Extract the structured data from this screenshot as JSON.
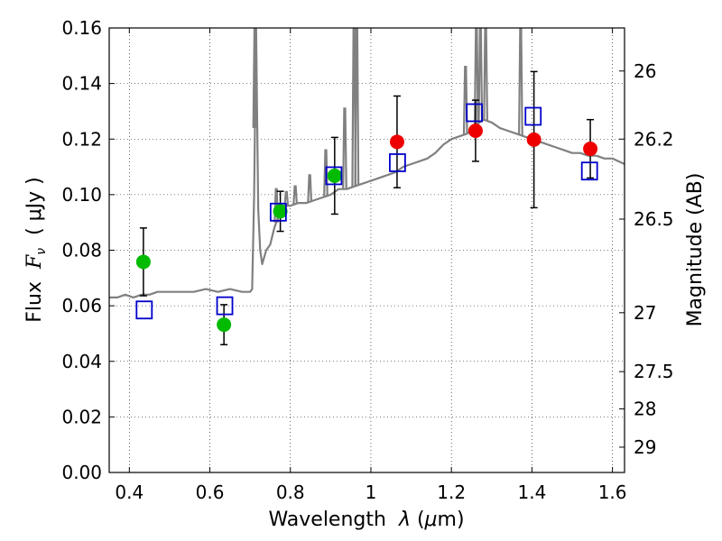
{
  "chart_data": {
    "type": "scatter",
    "xlabel_prefix": "Wavelength  ",
    "xlabel_symbol": "λ",
    "xlabel_unit_open": " (",
    "xlabel_unit_mu": "μ",
    "xlabel_unit_close": "m)",
    "ylabel_prefix": "Flux  ",
    "ylabel_symbol": "F",
    "ylabel_subscript": "ν",
    "ylabel_unit": "  ( μJy )",
    "y2label": "Magnitude (AB)",
    "xlim": [
      0.35,
      1.63
    ],
    "ylim": [
      0,
      0.16
    ],
    "xticks": [
      {
        "value": 0.4,
        "label": "0.4"
      },
      {
        "value": 0.6,
        "label": "0.6"
      },
      {
        "value": 0.8,
        "label": "0.8"
      },
      {
        "value": 1.0,
        "label": "1"
      },
      {
        "value": 1.2,
        "label": "1.2"
      },
      {
        "value": 1.4,
        "label": "1.4"
      },
      {
        "value": 1.6,
        "label": "1.6"
      }
    ],
    "yticks": [
      {
        "value": 0.0,
        "label": "0.00"
      },
      {
        "value": 0.02,
        "label": "0.02"
      },
      {
        "value": 0.04,
        "label": "0.04"
      },
      {
        "value": 0.06,
        "label": "0.06"
      },
      {
        "value": 0.08,
        "label": "0.08"
      },
      {
        "value": 0.1,
        "label": "0.10"
      },
      {
        "value": 0.12,
        "label": "0.12"
      },
      {
        "value": 0.14,
        "label": "0.14"
      },
      {
        "value": 0.16,
        "label": "0.16"
      }
    ],
    "y2ticks": [
      {
        "flux": 0.1445,
        "label": "26"
      },
      {
        "flux": 0.12,
        "label": "26.2"
      },
      {
        "flux": 0.0912,
        "label": "26.5"
      },
      {
        "flux": 0.0575,
        "label": "27"
      },
      {
        "flux": 0.0363,
        "label": "27.5"
      },
      {
        "flux": 0.0229,
        "label": "28"
      },
      {
        "flux": 0.0091,
        "label": "29"
      }
    ],
    "grid": true,
    "grid_style": "dotted",
    "colors": {
      "spectrum": "#808080",
      "green_points": "#00bb00",
      "red_points": "#ee0000",
      "model_squares": "#0000cc",
      "errorbars": "#000000"
    },
    "spectrum": {
      "x": [
        0.35,
        0.37,
        0.39,
        0.41,
        0.43,
        0.45,
        0.47,
        0.5,
        0.53,
        0.56,
        0.59,
        0.62,
        0.65,
        0.68,
        0.7,
        0.705,
        0.71,
        0.715,
        0.72,
        0.725,
        0.73,
        0.74,
        0.75,
        0.76,
        0.77,
        0.78,
        0.79,
        0.8,
        0.82,
        0.84,
        0.86,
        0.88,
        0.9,
        0.92,
        0.94,
        0.96,
        0.98,
        1.0,
        1.02,
        1.04,
        1.06,
        1.08,
        1.1,
        1.12,
        1.14,
        1.16,
        1.18,
        1.2,
        1.22,
        1.24,
        1.26,
        1.28,
        1.3,
        1.32,
        1.34,
        1.36,
        1.38,
        1.4,
        1.42,
        1.44,
        1.46,
        1.48,
        1.5,
        1.52,
        1.54,
        1.56,
        1.58,
        1.6,
        1.63
      ],
      "y": [
        0.063,
        0.063,
        0.064,
        0.063,
        0.064,
        0.064,
        0.065,
        0.065,
        0.065,
        0.065,
        0.066,
        0.065,
        0.066,
        0.065,
        0.065,
        0.066,
        0.1,
        0.16,
        0.095,
        0.08,
        0.075,
        0.08,
        0.082,
        0.088,
        0.092,
        0.093,
        0.096,
        0.096,
        0.097,
        0.097,
        0.098,
        0.099,
        0.1,
        0.102,
        0.102,
        0.103,
        0.104,
        0.105,
        0.106,
        0.107,
        0.108,
        0.11,
        0.111,
        0.112,
        0.113,
        0.115,
        0.118,
        0.12,
        0.121,
        0.122,
        0.125,
        0.127,
        0.126,
        0.124,
        0.123,
        0.122,
        0.121,
        0.12,
        0.119,
        0.118,
        0.117,
        0.116,
        0.115,
        0.115,
        0.114,
        0.114,
        0.113,
        0.113,
        0.111
      ]
    },
    "spectral_lines": [
      {
        "x": 0.437,
        "peak": 0.064
      },
      {
        "x": 0.712,
        "peak": 0.16
      },
      {
        "x": 0.765,
        "peak": 0.102
      },
      {
        "x": 0.79,
        "peak": 0.101
      },
      {
        "x": 0.812,
        "peak": 0.103
      },
      {
        "x": 0.848,
        "peak": 0.107
      },
      {
        "x": 0.888,
        "peak": 0.116
      },
      {
        "x": 0.935,
        "peak": 0.131
      },
      {
        "x": 0.958,
        "peak": 0.16
      },
      {
        "x": 0.965,
        "peak": 0.16
      },
      {
        "x": 1.235,
        "peak": 0.146
      },
      {
        "x": 1.262,
        "peak": 0.16
      },
      {
        "x": 1.272,
        "peak": 0.16
      },
      {
        "x": 1.285,
        "peak": 0.16
      },
      {
        "x": 1.372,
        "peak": 0.16
      }
    ],
    "series": [
      {
        "marker": "circle",
        "color": "#00bb00",
        "points": [
          {
            "x": 0.435,
            "y": 0.0758,
            "err": 0.0122
          },
          {
            "x": 0.635,
            "y": 0.0532,
            "err": 0.0072
          },
          {
            "x": 0.775,
            "y": 0.094,
            "err": 0.0072
          },
          {
            "x": 0.91,
            "y": 0.1068,
            "err": 0.0138
          }
        ]
      },
      {
        "marker": "circle",
        "color": "#ee0000",
        "points": [
          {
            "x": 1.065,
            "y": 0.119,
            "err": 0.0165
          },
          {
            "x": 1.26,
            "y": 0.123,
            "err": 0.011
          },
          {
            "x": 1.405,
            "y": 0.1198,
            "err": 0.0245
          },
          {
            "x": 1.545,
            "y": 0.1165,
            "err": 0.0105
          }
        ]
      },
      {
        "marker": "square",
        "color": "#0000cc",
        "points": [
          {
            "x": 0.437,
            "y": 0.0585
          },
          {
            "x": 0.637,
            "y": 0.06
          },
          {
            "x": 0.77,
            "y": 0.0937
          },
          {
            "x": 0.908,
            "y": 0.1068
          },
          {
            "x": 1.066,
            "y": 0.1115
          },
          {
            "x": 1.257,
            "y": 0.1295
          },
          {
            "x": 1.403,
            "y": 0.1282
          },
          {
            "x": 1.543,
            "y": 0.1085
          }
        ]
      }
    ]
  }
}
